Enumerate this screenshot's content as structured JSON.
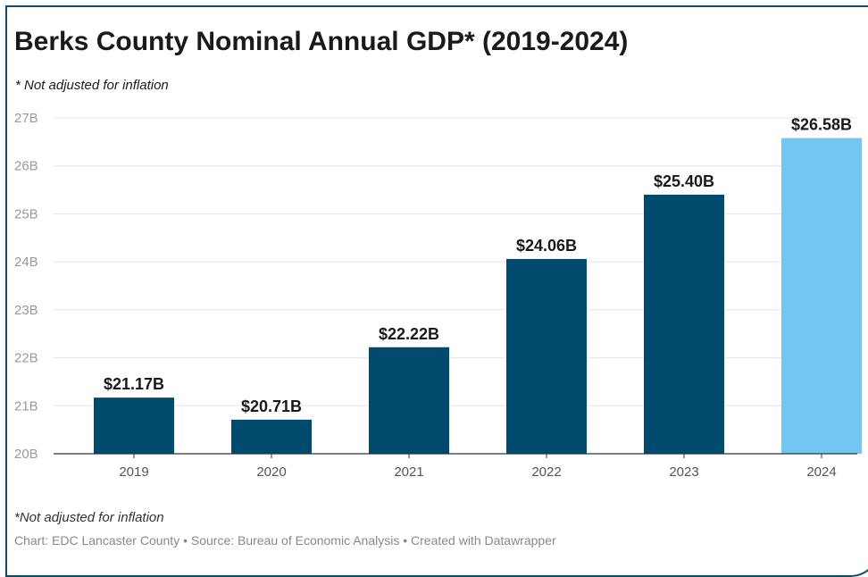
{
  "title": "Berks County Nominal Annual GDP* (2019-2024)",
  "subtitle": "* Not adjusted for inflation",
  "footer": {
    "note": "*Not adjusted for inflation",
    "source": "Chart: EDC Lancaster County • Source: Bureau of Economic Analysis • Created with Datawrapper"
  },
  "colors": {
    "bar": "#004a6e",
    "highlight": "#72c6ef",
    "grid": "#e5e5e5",
    "axis": "#333333"
  },
  "chart_data": {
    "type": "bar",
    "categories": [
      "2019",
      "2020",
      "2021",
      "2022",
      "2023",
      "2024"
    ],
    "values": [
      21.17,
      20.71,
      22.22,
      24.06,
      25.4,
      26.58
    ],
    "value_labels": [
      "$21.17B",
      "$20.71B",
      "$22.22B",
      "$24.06B",
      "$25.40B",
      "$26.58B"
    ],
    "highlight_index": 5,
    "ylim": [
      20,
      27
    ],
    "yticks": [
      20,
      21,
      22,
      23,
      24,
      25,
      26,
      27
    ],
    "ytick_labels": [
      "20B",
      "21B",
      "22B",
      "23B",
      "24B",
      "25B",
      "26B",
      "27B"
    ],
    "xlabel": "",
    "ylabel": "",
    "grid": true,
    "legend": "none"
  }
}
